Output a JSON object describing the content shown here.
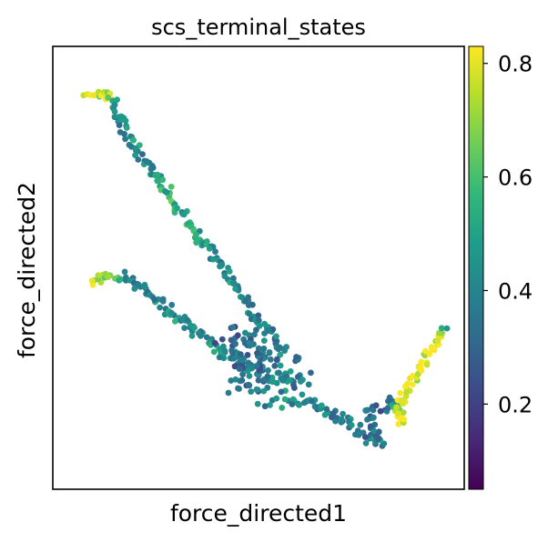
{
  "chart_data": {
    "type": "scatter",
    "title": "scs_terminal_states",
    "xlabel": "force_directed1",
    "ylabel": "force_directed2",
    "x_ticks": "none",
    "y_ticks": "none",
    "grid": false,
    "colormap": "viridis",
    "color_range": [
      0.05,
      0.83
    ],
    "colorbar": {
      "ticks": [
        0.2,
        0.4,
        0.6,
        0.8
      ],
      "tick_labels": [
        "0.2",
        "0.4",
        "0.6",
        "0.8"
      ],
      "placement": "right"
    },
    "xlim": [
      0,
      100
    ],
    "ylim": [
      0,
      100
    ],
    "trajectories": [
      {
        "branch": "upper",
        "points": [
          [
            5,
            93,
            0.8
          ],
          [
            8,
            92,
            0.75
          ],
          [
            11,
            92,
            0.7
          ],
          [
            12,
            89,
            0.45
          ],
          [
            14,
            85,
            0.4
          ],
          [
            17,
            80,
            0.45
          ],
          [
            21,
            75,
            0.4
          ],
          [
            25,
            70,
            0.55
          ],
          [
            29,
            64,
            0.55
          ],
          [
            33,
            59,
            0.5
          ],
          [
            37,
            54,
            0.45
          ],
          [
            41,
            49,
            0.4
          ],
          [
            45,
            44,
            0.45
          ],
          [
            49,
            39,
            0.4
          ],
          [
            53,
            34,
            0.35
          ],
          [
            56,
            30,
            0.4
          ]
        ]
      },
      {
        "branch": "lower",
        "points": [
          [
            6,
            46,
            0.8
          ],
          [
            8,
            47,
            0.75
          ],
          [
            11,
            48,
            0.7
          ],
          [
            14,
            48,
            0.45
          ],
          [
            18,
            46,
            0.4
          ],
          [
            22,
            43,
            0.4
          ],
          [
            26,
            40,
            0.45
          ],
          [
            30,
            37,
            0.45
          ],
          [
            34,
            34,
            0.4
          ],
          [
            38,
            31,
            0.45
          ],
          [
            42,
            29,
            0.4
          ],
          [
            46,
            27,
            0.4
          ],
          [
            50,
            24,
            0.35
          ],
          [
            54,
            22,
            0.35
          ]
        ]
      },
      {
        "branch": "blob",
        "points": [
          [
            40,
            31,
            0.35
          ],
          [
            44,
            33,
            0.3
          ],
          [
            48,
            32,
            0.35
          ],
          [
            52,
            30,
            0.4
          ],
          [
            56,
            28,
            0.4
          ],
          [
            58,
            25,
            0.35
          ],
          [
            54,
            25,
            0.45
          ],
          [
            60,
            22,
            0.35
          ],
          [
            62,
            19,
            0.45
          ],
          [
            48,
            20,
            0.35
          ],
          [
            44,
            23,
            0.4
          ],
          [
            50,
            27,
            0.3
          ],
          [
            46,
            30,
            0.35
          ],
          [
            42,
            26,
            0.3
          ]
        ]
      },
      {
        "branch": "bottom-right",
        "points": [
          [
            62,
            18,
            0.35
          ],
          [
            66,
            16,
            0.4
          ],
          [
            70,
            14,
            0.35
          ],
          [
            74,
            12,
            0.4
          ],
          [
            77,
            10,
            0.3
          ],
          [
            80,
            8,
            0.35
          ],
          [
            82,
            7,
            0.4
          ],
          [
            79,
            15,
            0.35
          ],
          [
            83,
            16,
            0.3
          ],
          [
            86,
            18,
            0.4
          ],
          [
            87,
            12,
            0.8
          ],
          [
            88,
            18,
            0.83
          ],
          [
            90,
            22,
            0.75
          ],
          [
            93,
            26,
            0.78
          ],
          [
            95,
            30,
            0.8
          ],
          [
            97,
            33,
            0.82
          ],
          [
            99,
            35,
            0.4
          ]
        ]
      }
    ]
  }
}
